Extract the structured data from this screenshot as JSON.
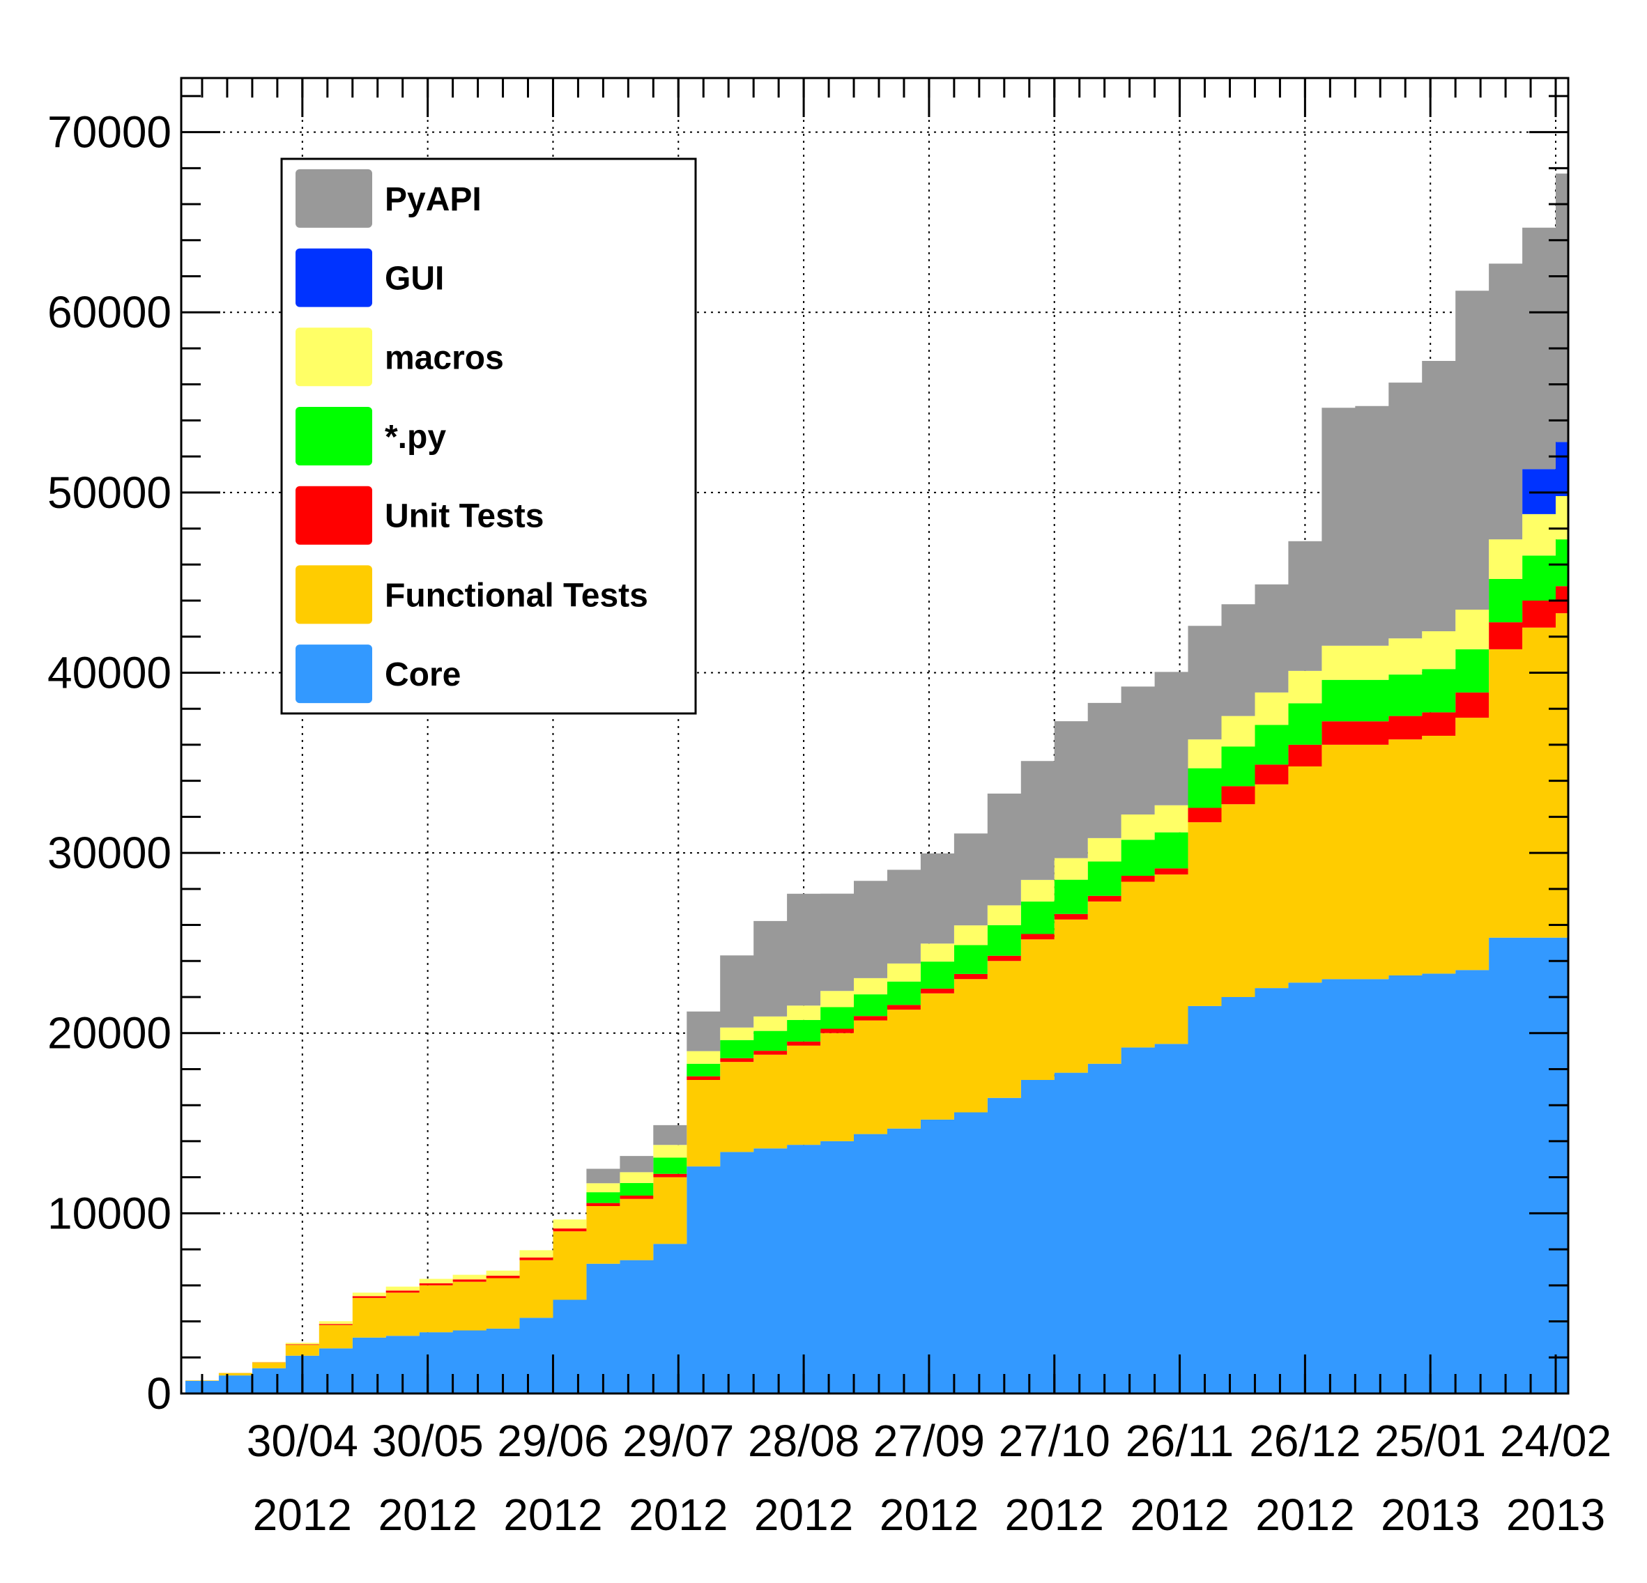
{
  "chart_data": {
    "type": "area",
    "stacked": true,
    "step": true,
    "title": "",
    "xlabel": "",
    "ylabel": "",
    "x_axis": {
      "kind": "date",
      "range": [
        "2012-04-01",
        "2013-02-27"
      ],
      "tick_labels": [
        {
          "date": "2012-04-30",
          "line1": "30/04",
          "line2": "2012"
        },
        {
          "date": "2012-05-30",
          "line1": "30/05",
          "line2": "2012"
        },
        {
          "date": "2012-06-29",
          "line1": "29/06",
          "line2": "2012"
        },
        {
          "date": "2012-07-29",
          "line1": "29/07",
          "line2": "2012"
        },
        {
          "date": "2012-08-28",
          "line1": "28/08",
          "line2": "2012"
        },
        {
          "date": "2012-09-27",
          "line1": "27/09",
          "line2": "2012"
        },
        {
          "date": "2012-10-27",
          "line1": "27/10",
          "line2": "2012"
        },
        {
          "date": "2012-11-26",
          "line1": "26/11",
          "line2": "2012"
        },
        {
          "date": "2012-12-26",
          "line1": "26/12",
          "line2": "2012"
        },
        {
          "date": "2013-01-25",
          "line1": "25/01",
          "line2": "2013"
        },
        {
          "date": "2013-02-24",
          "line1": "24/02",
          "line2": "2013"
        }
      ]
    },
    "y_axis": {
      "range": [
        0,
        73000
      ],
      "ticks": [
        0,
        10000,
        20000,
        30000,
        40000,
        50000,
        60000,
        70000
      ],
      "tick_labels": [
        "0",
        "10000",
        "20000",
        "30000",
        "40000",
        "50000",
        "60000",
        "70000"
      ]
    },
    "grid": true,
    "legend_position": "top-left",
    "x": [
      "2012-04-02",
      "2012-04-10",
      "2012-04-18",
      "2012-04-26",
      "2012-05-04",
      "2012-05-12",
      "2012-05-20",
      "2012-05-28",
      "2012-06-05",
      "2012-06-13",
      "2012-06-21",
      "2012-06-29",
      "2012-07-07",
      "2012-07-15",
      "2012-07-23",
      "2012-07-31",
      "2012-08-08",
      "2012-08-16",
      "2012-08-24",
      "2012-09-01",
      "2012-09-09",
      "2012-09-17",
      "2012-09-25",
      "2012-10-03",
      "2012-10-11",
      "2012-10-19",
      "2012-10-27",
      "2012-11-04",
      "2012-11-12",
      "2012-11-20",
      "2012-11-28",
      "2012-12-06",
      "2012-12-14",
      "2012-12-22",
      "2012-12-30",
      "2013-01-07",
      "2013-01-15",
      "2013-01-23",
      "2013-01-31",
      "2013-02-08",
      "2013-02-16",
      "2013-02-24"
    ],
    "series": [
      {
        "name": "Core",
        "color": "#3399ff",
        "values": [
          700,
          1000,
          1400,
          2100,
          2500,
          3100,
          3200,
          3400,
          3500,
          3600,
          4200,
          5200,
          7200,
          7400,
          8300,
          12600,
          13400,
          13600,
          13800,
          14000,
          14400,
          14700,
          15200,
          15600,
          16400,
          17400,
          17800,
          18300,
          19200,
          19400,
          21500,
          22000,
          22500,
          22800,
          23000,
          23000,
          23200,
          23300,
          23500,
          25300,
          25300,
          25300
        ]
      },
      {
        "name": "Functional Tests",
        "color": "#ffcc00",
        "values": [
          20,
          120,
          300,
          600,
          1300,
          2200,
          2400,
          2600,
          2700,
          2800,
          3200,
          3800,
          3200,
          3400,
          3700,
          4800,
          5000,
          5200,
          5500,
          6000,
          6300,
          6600,
          7000,
          7400,
          7600,
          7800,
          8500,
          9000,
          9200,
          9400,
          10200,
          10700,
          11300,
          12000,
          13000,
          13000,
          13100,
          13200,
          14000,
          16000,
          17200,
          18000
        ]
      },
      {
        "name": "Unit Tests",
        "color": "#ff0000",
        "values": [
          5,
          10,
          15,
          30,
          60,
          100,
          110,
          120,
          130,
          140,
          150,
          160,
          170,
          180,
          190,
          200,
          210,
          220,
          230,
          240,
          250,
          260,
          270,
          280,
          290,
          300,
          310,
          320,
          330,
          340,
          800,
          1000,
          1100,
          1200,
          1300,
          1300,
          1300,
          1300,
          1400,
          1500,
          1500,
          1500
        ]
      },
      {
        "name": "*.py",
        "color": "#00ff00",
        "values": [
          0,
          0,
          0,
          0,
          0,
          0,
          0,
          0,
          0,
          0,
          0,
          0,
          600,
          700,
          900,
          700,
          1000,
          1100,
          1200,
          1200,
          1200,
          1300,
          1500,
          1600,
          1700,
          1800,
          1900,
          1900,
          2000,
          2000,
          2200,
          2200,
          2200,
          2300,
          2300,
          2300,
          2300,
          2400,
          2400,
          2400,
          2500,
          2600
        ]
      },
      {
        "name": "macros",
        "color": "#ffff66",
        "values": [
          10,
          20,
          40,
          80,
          150,
          200,
          220,
          240,
          260,
          280,
          400,
          500,
          500,
          600,
          700,
          700,
          700,
          800,
          800,
          900,
          900,
          1000,
          1000,
          1100,
          1100,
          1200,
          1200,
          1300,
          1400,
          1500,
          1600,
          1700,
          1800,
          1800,
          1900,
          1900,
          2000,
          2100,
          2200,
          2200,
          2300,
          2400
        ]
      },
      {
        "name": "GUI",
        "color": "#0033ff",
        "values": [
          0,
          0,
          0,
          0,
          0,
          0,
          0,
          0,
          0,
          0,
          0,
          0,
          0,
          0,
          0,
          0,
          0,
          0,
          0,
          0,
          0,
          0,
          0,
          0,
          0,
          0,
          0,
          0,
          0,
          0,
          0,
          0,
          0,
          0,
          0,
          0,
          0,
          0,
          0,
          0,
          2500,
          3000
        ]
      },
      {
        "name": "PyAPI",
        "color": "#999999",
        "values": [
          0,
          0,
          0,
          0,
          0,
          0,
          0,
          0,
          0,
          0,
          0,
          0,
          800,
          900,
          1100,
          2200,
          4000,
          5300,
          6200,
          5400,
          5400,
          5200,
          5000,
          5100,
          6200,
          6600,
          7600,
          7500,
          7100,
          7400,
          6300,
          6200,
          6000,
          7200,
          13200,
          13300,
          14200,
          15000,
          17700,
          15300,
          13400,
          14900
        ]
      }
    ],
    "legend": [
      {
        "label": "PyAPI",
        "color": "#999999"
      },
      {
        "label": "GUI",
        "color": "#0033ff"
      },
      {
        "label": "macros",
        "color": "#ffff66"
      },
      {
        "label": "*.py",
        "color": "#00ff00"
      },
      {
        "label": "Unit Tests",
        "color": "#ff0000"
      },
      {
        "label": "Functional Tests",
        "color": "#ffcc00"
      },
      {
        "label": "Core",
        "color": "#3399ff"
      }
    ]
  }
}
